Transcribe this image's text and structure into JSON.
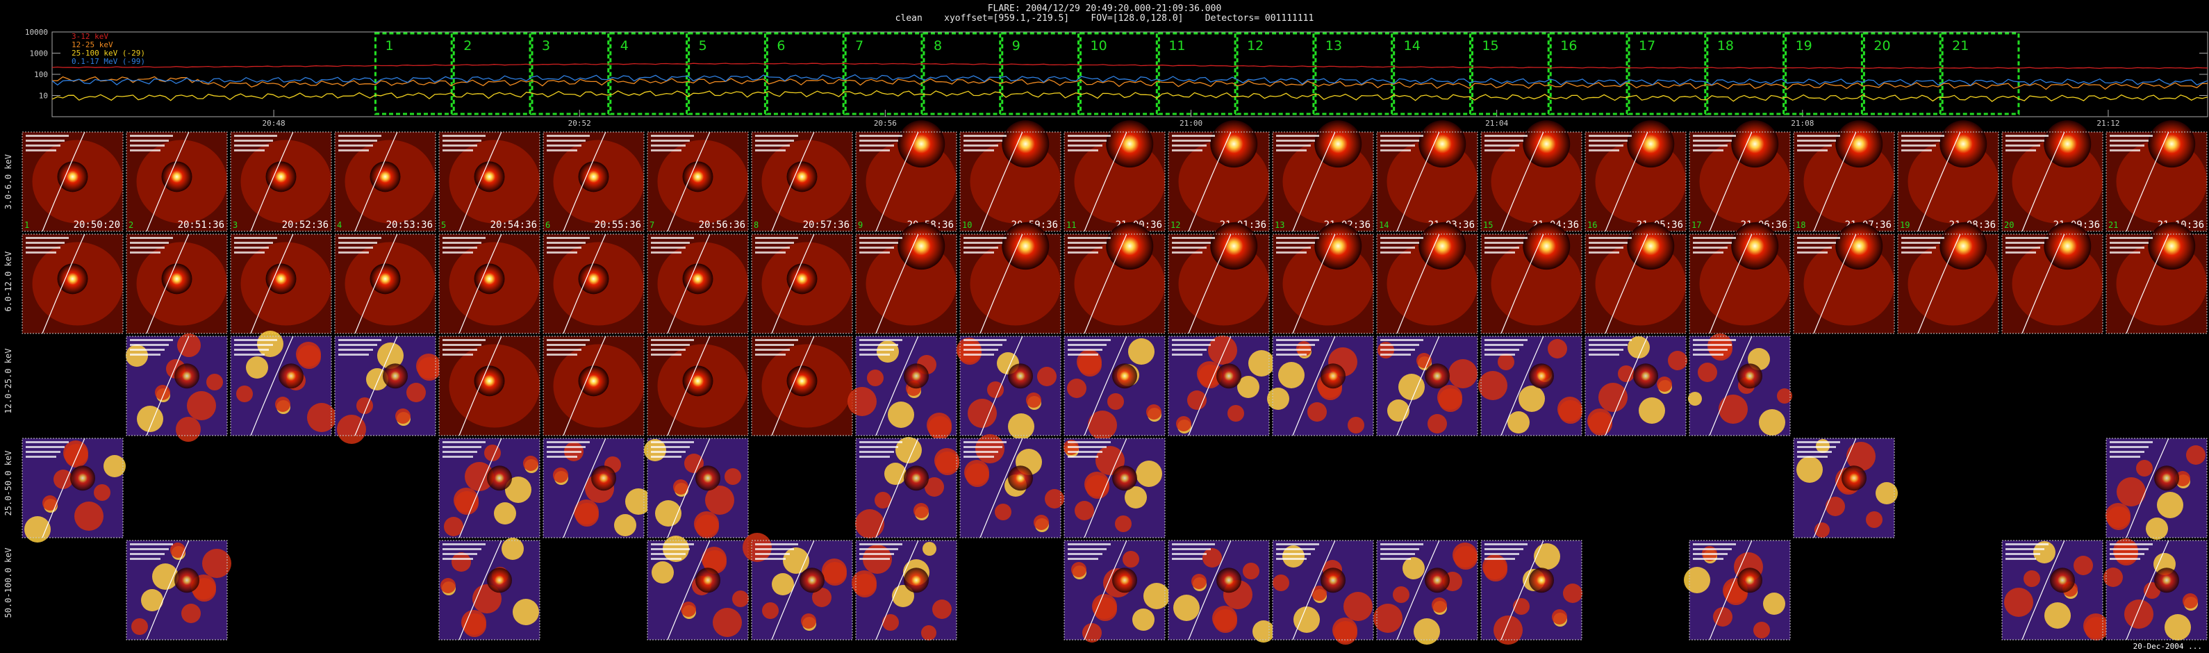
{
  "header": {
    "line1": "FLARE: 2004/12/29 20:49:20.000-21:09:36.000",
    "line2": "clean    xyoffset=[959.1,-219.5]    FOV=[128.0,128.0]    Detectors= 001111111"
  },
  "chart_data": {
    "type": "line",
    "yscale": "log",
    "yticks": [
      "10000",
      "1000",
      "100",
      "10"
    ],
    "ylim": [
      1,
      10000
    ],
    "xticks": [
      "20:48",
      "20:52",
      "20:56",
      "21:00",
      "21:04",
      "21:08",
      "21:12"
    ],
    "series": [
      {
        "name": "3-12 keV",
        "color": "#d22020",
        "base": 200
      },
      {
        "name": "12-25 keV",
        "color": "#f08a20",
        "base": 30
      },
      {
        "name": "25-100 keV (-29)",
        "color": "#f0d020",
        "base": 8
      },
      {
        "name": "0.1-17 MeV (-99)",
        "color": "#2f7fe0",
        "base": 45
      }
    ],
    "intervals": [
      "1",
      "2",
      "3",
      "4",
      "5",
      "6",
      "7",
      "8",
      "9",
      "10",
      "11",
      "12",
      "13",
      "14",
      "15",
      "16",
      "17",
      "18",
      "19",
      "20",
      "21"
    ],
    "times": [
      "20:50:20",
      "20:51:36",
      "20:52:36",
      "20:53:36",
      "20:54:36",
      "20:55:36",
      "20:56:36",
      "20:57:36",
      "20:58:36",
      "20:59:36",
      "21:00:36",
      "21:01:36",
      "21:02:36",
      "21:03:36",
      "21:04:36",
      "21:05:36",
      "21:06:36",
      "21:07:36",
      "21:08:36",
      "21:09:36",
      "21:10:36"
    ],
    "rows": [
      {
        "label": "3.0-6.0 keV",
        "present": [
          1,
          1,
          1,
          1,
          1,
          1,
          1,
          1,
          1,
          1,
          1,
          1,
          1,
          1,
          1,
          1,
          1,
          1,
          1,
          1,
          1
        ]
      },
      {
        "label": "6.0-12.0 keV",
        "present": [
          1,
          1,
          1,
          1,
          1,
          1,
          1,
          1,
          1,
          1,
          1,
          1,
          1,
          1,
          1,
          1,
          1,
          1,
          1,
          1,
          1
        ]
      },
      {
        "label": "12.0-25.0 keV",
        "present": [
          0,
          1,
          1,
          1,
          1,
          1,
          1,
          1,
          1,
          1,
          1,
          1,
          1,
          1,
          1,
          1,
          1,
          0,
          0,
          0,
          0
        ]
      },
      {
        "label": "25.0-50.0 keV",
        "present": [
          1,
          0,
          0,
          0,
          1,
          1,
          1,
          0,
          1,
          1,
          1,
          0,
          0,
          0,
          0,
          0,
          0,
          1,
          0,
          0,
          1
        ]
      },
      {
        "label": "50.0-100.0 keV",
        "present": [
          0,
          1,
          0,
          0,
          1,
          0,
          1,
          1,
          1,
          0,
          1,
          1,
          1,
          1,
          1,
          0,
          1,
          0,
          0,
          1,
          1
        ]
      }
    ],
    "last_panel_text": "20-Dec-2004 ..."
  }
}
